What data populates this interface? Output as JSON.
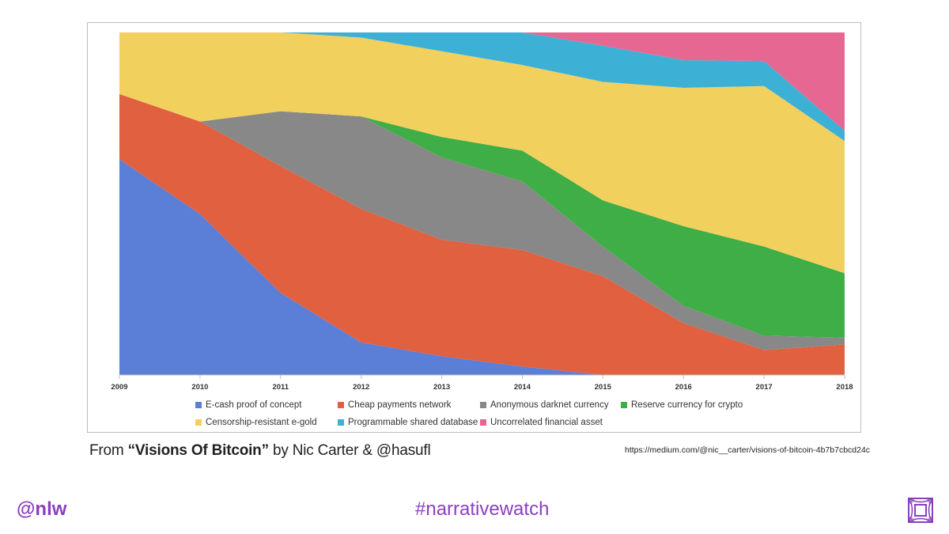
{
  "chart_data": {
    "type": "area",
    "stacked": true,
    "normalized": true,
    "x": [
      "2009",
      "2010",
      "2011",
      "2012",
      "2013",
      "2014",
      "2015",
      "2016",
      "2017",
      "2018"
    ],
    "series": [
      {
        "name": "E-cash proof of concept",
        "color": "#5b7fd6",
        "values": [
          63,
          47,
          24,
          9.5,
          5.5,
          2.5,
          0,
          0,
          0,
          0
        ]
      },
      {
        "name": "Cheap payments network",
        "color": "#e06040",
        "values": [
          19,
          27,
          37,
          39,
          34,
          34,
          30,
          15,
          7,
          9
        ]
      },
      {
        "name": "Anonymous darknet currency",
        "color": "#888888",
        "values": [
          0,
          0,
          16,
          27,
          24,
          20,
          9,
          5,
          4,
          2
        ]
      },
      {
        "name": "Reserve currency for crypto",
        "color": "#3fae46",
        "values": [
          0,
          0,
          0,
          0,
          6,
          9,
          14,
          23,
          25,
          19
        ]
      },
      {
        "name": "Censorship-resistant e-gold",
        "color": "#f2d05e",
        "values": [
          18,
          26,
          23,
          23,
          25,
          25,
          36,
          40,
          45,
          39
        ]
      },
      {
        "name": "Programmable shared database",
        "color": "#3db0d6",
        "values": [
          0,
          0,
          0,
          1.5,
          5.5,
          9.5,
          11,
          8,
          7,
          3
        ]
      },
      {
        "name": "Uncorrelated financial asset",
        "color": "#e66792",
        "values": [
          0,
          0,
          0,
          0,
          0,
          0.001,
          4,
          8,
          8,
          29
        ]
      }
    ]
  },
  "caption": {
    "prefix": "From ",
    "title": "“Visions Of Bitcoin”",
    "suffix": " by Nic Carter & @hasufl"
  },
  "source_url": "https://medium.com/@nic__carter/visions-of-bitcoin-4b7b7cbcd24c",
  "footer": {
    "handle": "@nlw",
    "hashtag": "#narrativewatch",
    "logo_icon": "square-spiral-logo",
    "brand_color": "#8a3fc0"
  }
}
